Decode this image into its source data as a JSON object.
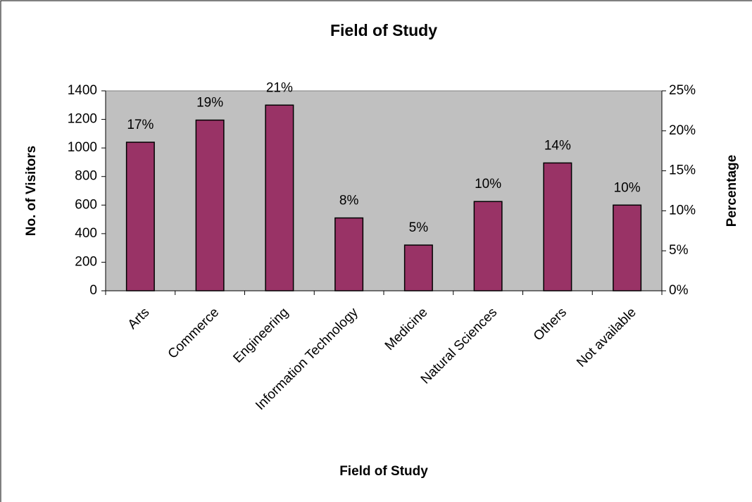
{
  "chart_data": {
    "type": "bar",
    "title": "Field of Study",
    "x_label": "Field of Study",
    "y_label": "No. of Visitors",
    "y2_label": "Percentage",
    "categories": [
      "Arts",
      "Commerce",
      "Engineering",
      "Information Technology",
      "Medicine",
      "Natural Sciences",
      "Others",
      "Not available"
    ],
    "values": [
      1040,
      1195,
      1300,
      510,
      320,
      625,
      895,
      600
    ],
    "percent": {
      "values": [
        17,
        19,
        21,
        8,
        5,
        10,
        14,
        10
      ],
      "value_labels": [
        "17%",
        "19%",
        "21%",
        "8%",
        "5%",
        "10%",
        "14%",
        "10%"
      ]
    },
    "color": "#993366",
    "plot_background": "#c0c0c0",
    "ylim": [
      0,
      1400
    ],
    "yticks": [
      0,
      200,
      400,
      600,
      800,
      1000,
      1200,
      1400
    ],
    "y2lim": [
      0,
      25
    ],
    "y2ticks": [
      {
        "value": 0,
        "label": "0%"
      },
      {
        "value": 5,
        "label": "5%"
      },
      {
        "value": 10,
        "label": "10%"
      },
      {
        "value": 15,
        "label": "15%"
      },
      {
        "value": 20,
        "label": "20%"
      },
      {
        "value": 25,
        "label": "25%"
      }
    ]
  }
}
